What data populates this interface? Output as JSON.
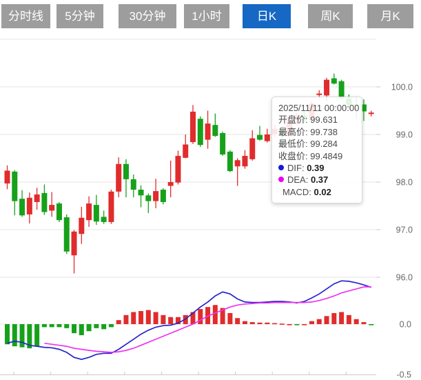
{
  "tabs": [
    {
      "label": "分时线",
      "active": false
    },
    {
      "label": "5分钟",
      "active": false
    },
    {
      "label": "30分钟",
      "active": false
    },
    {
      "label": "1小时",
      "active": false
    },
    {
      "label": "日K",
      "active": true
    },
    {
      "label": "周K",
      "active": false
    },
    {
      "label": "月K",
      "active": false
    }
  ],
  "tooltip": {
    "date": "2025/11/11 00:00:00",
    "open_label": "开盘价:",
    "open": "99.631",
    "high_label": "最高价:",
    "high": "99.738",
    "low_label": "最低价:",
    "low": "99.284",
    "close_label": "收盘价:",
    "close": "99.4849",
    "dif_label": "DIF:",
    "dif": "0.39",
    "dea_label": "DEA:",
    "dea": "0.37",
    "macd_label": "MACD:",
    "macd": "0.02"
  },
  "colors": {
    "up": "#e02c2c",
    "down": "#16a11b",
    "dif_line": "#2323cc",
    "dea_line": "#ee33ee",
    "dif_dot": "#1818dd",
    "dea_dot": "#ee00ee",
    "grid": "#e4e4e4",
    "axis_line": "#c9c9c9",
    "axis_text": "#666666",
    "tab_bg": "#9d9d9d",
    "tab_active_bg": "#1668c4"
  },
  "chart_data": {
    "type": "candlestick_with_macd",
    "main_panel": {
      "y_axis_labels": [
        "100.0",
        "99.0",
        "98.0",
        "97.0",
        "96.0"
      ],
      "y_axis_values": [
        100.0,
        99.0,
        98.0,
        97.0,
        96.0
      ],
      "ylim": [
        95.9,
        101.0
      ],
      "grid": true,
      "candles_ohlc": [
        [
          97.97,
          98.35,
          97.85,
          98.24
        ],
        [
          98.22,
          98.25,
          97.3,
          97.6
        ],
        [
          97.65,
          97.83,
          97.27,
          97.3
        ],
        [
          97.32,
          97.78,
          97.13,
          97.67
        ],
        [
          97.58,
          97.88,
          97.42,
          97.74
        ],
        [
          97.77,
          97.95,
          97.31,
          97.37
        ],
        [
          97.4,
          97.79,
          97.27,
          97.52
        ],
        [
          97.55,
          97.58,
          97.16,
          97.2
        ],
        [
          97.26,
          97.32,
          96.49,
          96.54
        ],
        [
          96.46,
          96.99,
          96.08,
          96.96
        ],
        [
          96.91,
          97.48,
          96.7,
          97.25
        ],
        [
          97.2,
          97.7,
          97.06,
          97.55
        ],
        [
          97.52,
          97.73,
          97.1,
          97.17
        ],
        [
          97.27,
          97.4,
          97.12,
          97.16
        ],
        [
          97.16,
          97.84,
          97.12,
          97.8
        ],
        [
          97.8,
          98.52,
          97.68,
          98.38
        ],
        [
          98.38,
          98.48,
          97.68,
          98.06
        ],
        [
          98.06,
          98.16,
          97.68,
          97.84
        ],
        [
          97.84,
          97.93,
          97.47,
          97.72
        ],
        [
          97.72,
          97.76,
          97.35,
          97.6
        ],
        [
          97.6,
          98.07,
          97.45,
          97.81
        ],
        [
          97.84,
          97.87,
          97.53,
          97.58
        ],
        [
          97.92,
          98.45,
          97.68,
          98.0
        ],
        [
          97.99,
          98.66,
          97.95,
          98.55
        ],
        [
          98.51,
          99.0,
          98.5,
          98.79
        ],
        [
          98.84,
          99.62,
          98.8,
          99.48
        ],
        [
          99.33,
          99.38,
          98.74,
          98.78
        ],
        [
          98.89,
          99.5,
          98.7,
          99.23
        ],
        [
          99.2,
          99.44,
          98.95,
          98.97
        ],
        [
          99.03,
          99.06,
          98.55,
          98.58
        ],
        [
          98.64,
          98.67,
          98.21,
          98.23
        ],
        [
          98.33,
          98.5,
          97.92,
          98.46
        ],
        [
          98.33,
          98.67,
          98.28,
          98.55
        ],
        [
          98.48,
          99.09,
          98.45,
          98.92
        ],
        [
          98.99,
          99.18,
          98.87,
          98.89
        ],
        [
          98.86,
          99.12,
          98.83,
          99.0
        ],
        [
          99.0,
          99.2,
          98.95,
          99.12
        ],
        [
          99.12,
          99.18,
          98.92,
          98.97
        ],
        [
          98.97,
          99.35,
          98.95,
          99.3
        ],
        [
          99.3,
          99.45,
          99.2,
          99.4
        ],
        [
          99.4,
          99.48,
          99.25,
          99.3
        ],
        [
          99.3,
          99.7,
          99.28,
          99.65
        ],
        [
          99.83,
          99.93,
          99.75,
          99.86
        ],
        [
          99.82,
          100.19,
          99.7,
          100.15
        ],
        [
          100.18,
          100.28,
          100.05,
          100.07
        ],
        [
          100.12,
          100.15,
          99.73,
          99.76
        ],
        [
          99.76,
          99.84,
          99.54,
          99.62
        ],
        [
          99.63,
          99.78,
          99.32,
          99.6
        ],
        [
          99.631,
          99.738,
          99.284,
          99.4849
        ],
        [
          99.43,
          99.5,
          99.38,
          99.46
        ]
      ]
    },
    "macd_panel": {
      "y_axis_labels": [
        "0.0",
        "-0.5"
      ],
      "y_axis_values": [
        0.0,
        -0.5
      ],
      "histogram": [
        -0.2,
        -0.22,
        -0.23,
        -0.24,
        -0.22,
        -0.03,
        -0.03,
        -0.03,
        -0.04,
        -0.09,
        -0.11,
        -0.07,
        -0.04,
        -0.05,
        -0.03,
        0.04,
        0.09,
        0.12,
        0.13,
        0.14,
        0.12,
        0.09,
        0.07,
        0.07,
        0.09,
        0.12,
        0.15,
        0.17,
        0.19,
        0.16,
        0.11,
        0.06,
        0.03,
        0.02,
        0.015,
        0.015,
        0.01,
        0.005,
        0.0,
        -0.01,
        0.0,
        0.03,
        0.05,
        0.08,
        0.11,
        0.12,
        0.09,
        0.05,
        0.02,
        -0.01
      ],
      "dif": [
        -0.19,
        -0.17,
        -0.18,
        -0.21,
        -0.22,
        -0.23,
        -0.235,
        -0.25,
        -0.28,
        -0.33,
        -0.35,
        -0.33,
        -0.3,
        -0.29,
        -0.29,
        -0.25,
        -0.2,
        -0.15,
        -0.1,
        -0.06,
        -0.03,
        -0.015,
        -0.01,
        0.01,
        0.05,
        0.11,
        0.17,
        0.22,
        0.28,
        0.32,
        0.3,
        0.25,
        0.22,
        0.215,
        0.215,
        0.22,
        0.225,
        0.225,
        0.22,
        0.21,
        0.225,
        0.26,
        0.3,
        0.35,
        0.4,
        0.43,
        0.425,
        0.41,
        0.39,
        0.365
      ],
      "dea": [
        null,
        null,
        null,
        null,
        null,
        -0.19,
        -0.2,
        -0.21,
        -0.22,
        -0.24,
        -0.25,
        -0.26,
        -0.27,
        -0.275,
        -0.28,
        -0.275,
        -0.26,
        -0.24,
        -0.21,
        -0.18,
        -0.15,
        -0.12,
        -0.09,
        -0.06,
        -0.03,
        0.0,
        0.04,
        0.08,
        0.11,
        0.14,
        0.17,
        0.19,
        0.2,
        0.205,
        0.21,
        0.21,
        0.215,
        0.215,
        0.215,
        0.215,
        0.215,
        0.22,
        0.235,
        0.255,
        0.28,
        0.31,
        0.33,
        0.35,
        0.37,
        0.37
      ]
    }
  }
}
